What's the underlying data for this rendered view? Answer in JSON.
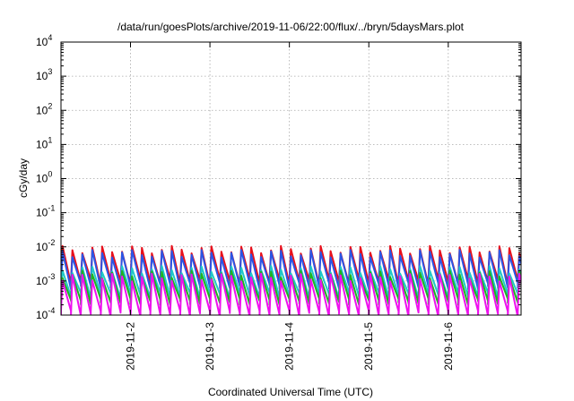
{
  "chart_data": {
    "type": "line",
    "title": "/data/run/goesPlots/archive/2019-11-06/22:00/flux/../bryn/5daysMars.plot",
    "xlabel": "Coordinated Universal Time (UTC)",
    "ylabel": "cGy/day",
    "yscale": "log",
    "ylim": [
      0.0001,
      10000
    ],
    "xlim": [
      "2019-11-01 03:00",
      "2019-11-06 22:00"
    ],
    "grid": true,
    "x_ticks": [
      "2019-11-2",
      "2019-11-3",
      "2019-11-4",
      "2019-11-5",
      "2019-11-6"
    ],
    "y_ticks": [
      {
        "value": 0.0001,
        "base": "10",
        "exp": "-4"
      },
      {
        "value": 0.001,
        "base": "10",
        "exp": "-3"
      },
      {
        "value": 0.01,
        "base": "10",
        "exp": "-2"
      },
      {
        "value": 0.1,
        "base": "10",
        "exp": "-1"
      },
      {
        "value": 1,
        "base": "10",
        "exp": "0"
      },
      {
        "value": 10,
        "base": "10",
        "exp": "1"
      },
      {
        "value": 100,
        "base": "10",
        "exp": "2"
      },
      {
        "value": 1000,
        "base": "10",
        "exp": "3"
      },
      {
        "value": 10000,
        "base": "10",
        "exp": "4"
      }
    ],
    "cycle_hours": 3,
    "series": [
      {
        "color": "#e8101c",
        "peak": 0.0085,
        "trough": 0.00095
      },
      {
        "color": "#2a55e6",
        "peak": 0.0065,
        "trough": 0.00072
      },
      {
        "color": "#20c8c8",
        "peak": 0.0022,
        "trough": 0.00038
      },
      {
        "color": "#1fb21f",
        "peak": 0.0016,
        "trough": 0.00025
      },
      {
        "color": "#ee11ee",
        "peak": 0.0013,
        "trough": 0.00011
      }
    ]
  }
}
